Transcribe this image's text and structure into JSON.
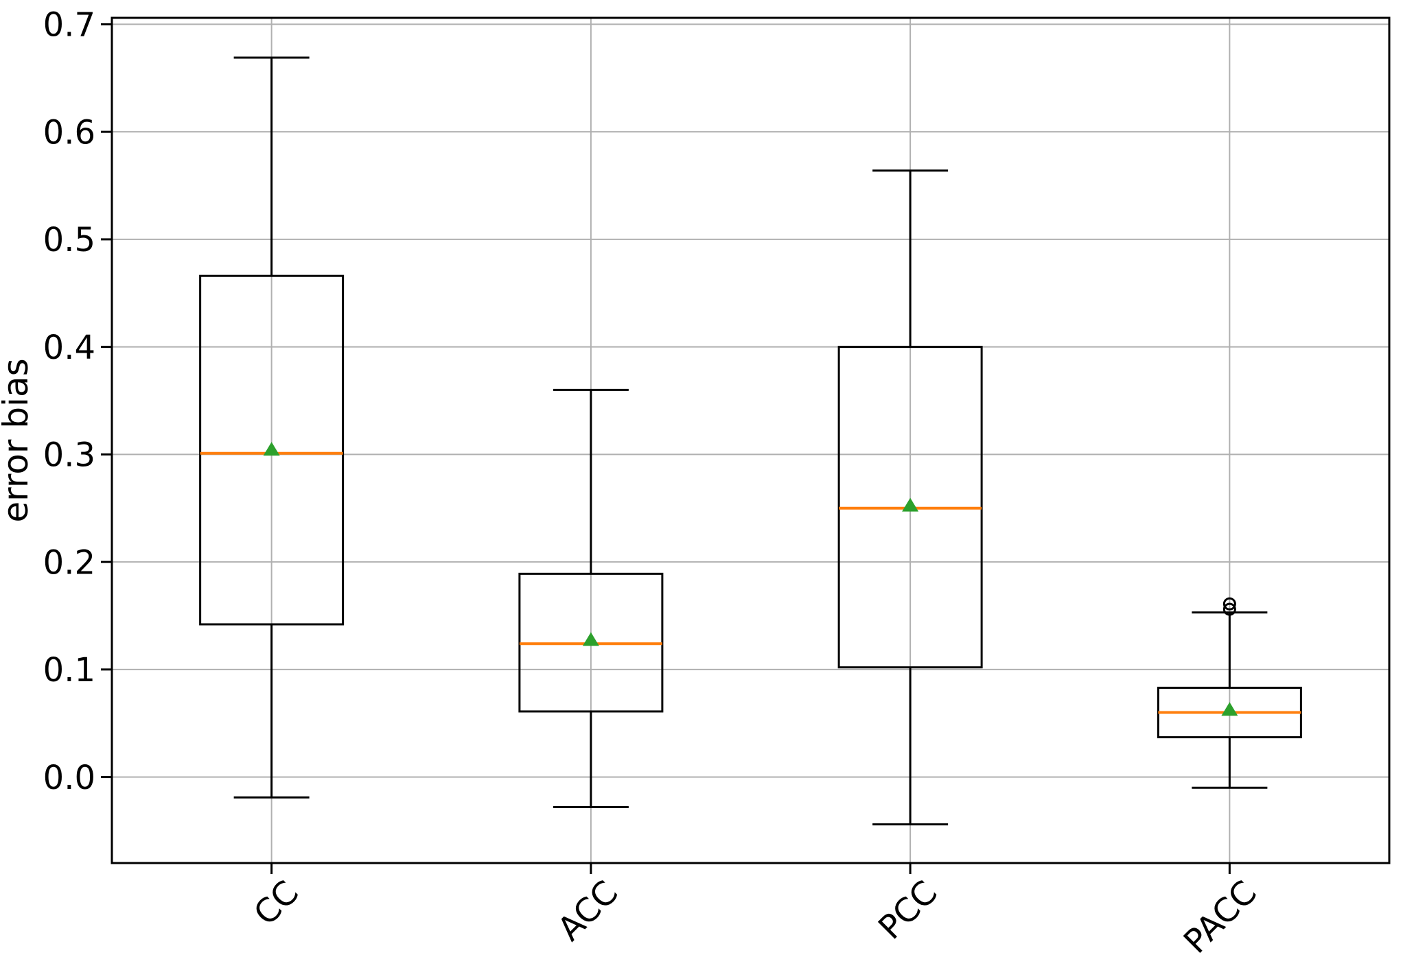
{
  "chart_data": {
    "type": "boxplot",
    "title": "",
    "xlabel": "",
    "ylabel": "error bias",
    "categories": [
      "CC",
      "ACC",
      "PCC",
      "PACC"
    ],
    "ylim": [
      -0.08,
      0.706
    ],
    "yticks": [
      0.0,
      0.1,
      0.2,
      0.3,
      0.4,
      0.5,
      0.6,
      0.7
    ],
    "ytick_labels": [
      "0.0",
      "0.1",
      "0.2",
      "0.3",
      "0.4",
      "0.5",
      "0.6",
      "0.7"
    ],
    "grid": true,
    "legend_position": "none",
    "x_tick_rotation_deg": 45,
    "boxes": [
      {
        "label": "CC",
        "whisker_low": -0.019,
        "q1": 0.142,
        "median": 0.301,
        "q3": 0.466,
        "whisker_high": 0.669,
        "mean": 0.304,
        "outliers": []
      },
      {
        "label": "ACC",
        "whisker_low": -0.028,
        "q1": 0.061,
        "median": 0.124,
        "q3": 0.189,
        "whisker_high": 0.36,
        "mean": 0.127,
        "outliers": []
      },
      {
        "label": "PCC",
        "whisker_low": -0.044,
        "q1": 0.102,
        "median": 0.25,
        "q3": 0.4,
        "whisker_high": 0.564,
        "mean": 0.252,
        "outliers": []
      },
      {
        "label": "PACC",
        "whisker_low": -0.01,
        "q1": 0.037,
        "median": 0.06,
        "q3": 0.083,
        "whisker_high": 0.153,
        "mean": 0.062,
        "outliers": [
          0.156,
          0.161
        ]
      }
    ],
    "colors": {
      "box": "#000000",
      "whisker": "#000000",
      "median": "#ff7f0e",
      "mean": "#2ca02c",
      "outlier": "#000000",
      "grid": "#b0b0b0",
      "spine": "#000000",
      "background": "#ffffff"
    }
  }
}
